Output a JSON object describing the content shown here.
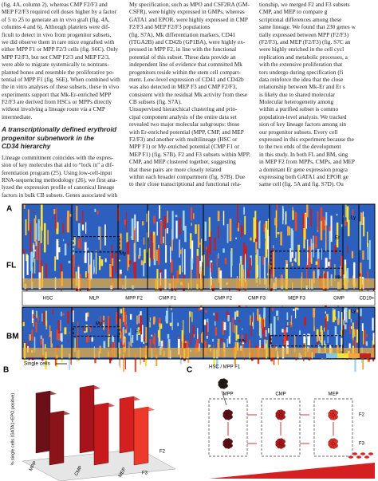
{
  "left_column": {
    "paragraph1": [
      "(fig. 4A, column 2), whereas CMP F2/F3 and",
      "MEP F2/F3 required cell doses higher by a factor",
      "of 5 to 25 to generate an in vivo graft (fig. 4A,",
      "columns 4 and 6). Although platelets were dif-",
      "ficult to detect in vivo from progenitor subsets,",
      "we did observe them in rare mice engrafted with",
      "either MPP F1 or MPP F2/3 cells (fig. S6C). Only",
      "MPP F2/F3, but not CMP F2/3 and MEP F2/3,",
      "were able to migrate systemically to nontrans-",
      "planted bones and resemble the proliferative po-",
      "tential of MPP F1 (fig. S6E). When combined with",
      "the in vitro analyses of these subsets, these in vivo",
      "experiments support that Mk-Er-enriched MPP",
      "F2/F3 are derived from HSCs or MPPs directly",
      "without involving a lineage route via a CMP",
      "intermediate."
    ],
    "heading": [
      "A transcriptionally defined erythroid",
      "progenitor subnetwork in the",
      "CD34 hierarchy"
    ],
    "paragraph2": [
      "Lineage commitment coincides with the expres-",
      "sion of key molecules that aid to “lock in” a dif-",
      "ferentiation program (25). Using low-cell-input",
      "RNA-sequencing methodology (26), we first ana-",
      "lyzed the expression profile of canonical lineage",
      "factors in bulk CB subsets. Genes associated with"
    ]
  },
  "middle_column": {
    "lines": [
      "My specification, such as MPO and CSF2RA (GM-",
      "CSFR), were highly expressed in GMPs, whereas",
      "GATA1 and EPOR, were highly expressed in CMP",
      "F2/F3 and MEP F2/F3 populations",
      "(fig. S7A). Mk differentiation markers, CD41",
      "(ITGA2B) and CD42b (GP1BA), were highly ex-",
      "pressed in MPP F2, in line with the functional",
      "potential of this subset. These data provide an",
      "independent line of evidence that committed Mk",
      "progenitors reside within the stem cell compart-",
      "ment. Low-level expression of CD41 and CD42b",
      "was also detected in MEP F3 and CMP F2/F3,",
      "consistent with the residual Mk activity from these",
      "CB subsets (fig. S7A).",
      "Unsupervised hierarchical clustering and prin-",
      "cipal component analysis of the entire data set",
      "revealed two major molecular subgroups: those",
      "with Er-enriched potential (MPP, CMP, and MEP",
      "F2/F3) and another with multilineage (HSC or",
      "MPP F1) or My-enriched potential (CMP F1 or",
      "MEP F1) (fig. S7B). F2 and F3 subsets within MPP,",
      "CMP, and MEP clustered together, suggesting",
      "that these pairs are more closely related",
      "within each broader compartment (fig. S7B). Due",
      "to their close transcriptional and functional rela-"
    ]
  },
  "right_column": {
    "lines": [
      "tionship, we merged F2 and F3 subsets",
      "CMP, and MEP to compare g",
      "scriptional differences among these",
      "same lineage. We found that 230 genes w",
      "tially expressed between MPP (F2/F3)",
      "(F2/F3), and MEP (F2/F3) (fig. S7C an",
      "were highly enriched in the cell cycl",
      "replication and metabolic processes, a",
      "with the extensive proliferation that",
      "tors undergo during specification (fi",
      "data reinforce the idea that the close",
      "relationship between Mk-Er and Er s",
      "is likely due to shared molecular",
      "Molecular heterogeneity among",
      "within a purified subset is commo",
      "population-level analysis. We tracked",
      "sion of key lineage factors among sin",
      "our progenitor subsets. Every cell",
      "expressed in this experiment because the",
      "to the two ends of the development",
      "in this study. In both FL and BM, sing",
      "in MEP F2 from MPPs, CMPs, and MEP",
      "a dominant Er gene expression progra",
      "expressing both GATA1 and EPOR ge",
      "same cell (fig. 5A and fig. S7D). Ou"
    ]
  },
  "figure": {
    "panel_a": {
      "label": "A",
      "tissues": [
        "FL",
        "BM"
      ],
      "lineages": [
        "My",
        "Ly",
        "Er",
        "Mk"
      ],
      "columns": [
        "HSC",
        "MLP",
        "MPP F2",
        "CMP F1",
        "CMP F2",
        "CMP F3",
        "MEP F3",
        "GMP",
        "CD19+"
      ],
      "x_label": "Single cells"
    },
    "panel_b": {
      "label": "B",
      "y_label": "% single cells (GATA1+EPO positive)",
      "groups": [
        "MPP",
        "CMP",
        "MEP"
      ],
      "fractions": [
        "F2",
        "F3"
      ]
    },
    "panel_c": {
      "label": "C",
      "root": "HSC / MPP F1",
      "groups": [
        "MPP",
        "CMP",
        "MEP"
      ],
      "fractions": [
        "F2",
        "F3"
      ]
    }
  }
}
